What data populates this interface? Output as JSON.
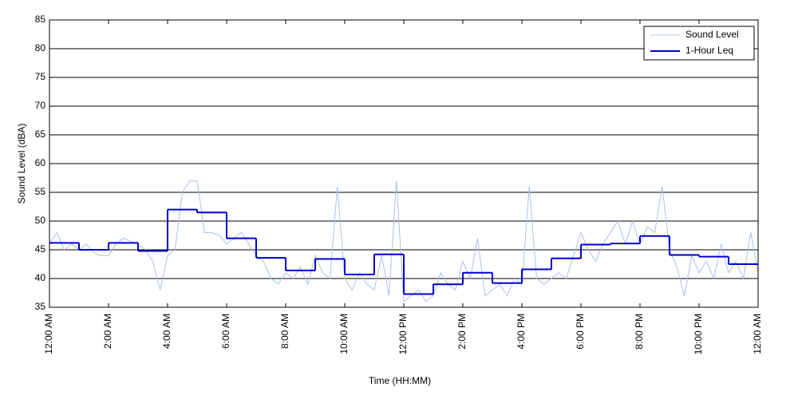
{
  "chart_data": {
    "type": "line",
    "xlabel": "Time (HH:MM)",
    "ylabel": "Sound Level (dBA)",
    "xlim": [
      0,
      24
    ],
    "ylim": [
      35,
      85
    ],
    "yticks": [
      35,
      40,
      45,
      50,
      55,
      60,
      65,
      70,
      75,
      80,
      85
    ],
    "xticks": [
      {
        "value": 0,
        "label": "12:00 AM"
      },
      {
        "value": 2,
        "label": "2:00 AM"
      },
      {
        "value": 4,
        "label": "4:00 AM"
      },
      {
        "value": 6,
        "label": "6:00 AM"
      },
      {
        "value": 8,
        "label": "8:00 AM"
      },
      {
        "value": 10,
        "label": "10:00 AM"
      },
      {
        "value": 12,
        "label": "12:00 PM"
      },
      {
        "value": 14,
        "label": "2:00 PM"
      },
      {
        "value": 16,
        "label": "4:00 PM"
      },
      {
        "value": 18,
        "label": "6:00 PM"
      },
      {
        "value": 20,
        "label": "8:00 PM"
      },
      {
        "value": 22,
        "label": "10:00 PM"
      },
      {
        "value": 24,
        "label": "12:00 AM"
      }
    ],
    "grid": true,
    "legend": "upper right",
    "series": [
      {
        "name": "Sound Level",
        "color": "#a9bff0",
        "x": [
          0,
          0.25,
          0.5,
          0.75,
          1,
          1.25,
          1.5,
          1.75,
          2,
          2.25,
          2.5,
          2.75,
          3,
          3.25,
          3.5,
          3.75,
          4,
          4.25,
          4.5,
          4.75,
          5,
          5.25,
          5.5,
          5.75,
          6,
          6.25,
          6.5,
          6.75,
          7,
          7.25,
          7.5,
          7.75,
          8,
          8.25,
          8.5,
          8.75,
          9,
          9.25,
          9.5,
          9.75,
          10,
          10.25,
          10.5,
          10.75,
          11,
          11.25,
          11.5,
          11.75,
          12,
          12.25,
          12.5,
          12.75,
          13,
          13.25,
          13.5,
          13.75,
          14,
          14.25,
          14.5,
          14.75,
          15,
          15.25,
          15.5,
          15.75,
          16,
          16.25,
          16.5,
          16.75,
          17,
          17.25,
          17.5,
          17.75,
          18,
          18.25,
          18.5,
          18.75,
          19,
          19.25,
          19.5,
          19.75,
          20,
          20.25,
          20.5,
          20.75,
          21,
          21.25,
          21.5,
          21.75,
          22,
          22.25,
          22.5,
          22.75,
          23,
          23.25,
          23.5,
          23.75,
          24
        ],
        "values": [
          46,
          48,
          45,
          46,
          45,
          46,
          44.5,
          44,
          44,
          46,
          47,
          46.5,
          46,
          45,
          43,
          38,
          44,
          45,
          55,
          57,
          57,
          48,
          48,
          47.5,
          46,
          47,
          48,
          46,
          44,
          43,
          40,
          39,
          41,
          40,
          42,
          39,
          44,
          41,
          40,
          56,
          40,
          38,
          41,
          39,
          38,
          44,
          37,
          57,
          36,
          37,
          38,
          36,
          37,
          41,
          39,
          38,
          43,
          40,
          47,
          37,
          38,
          39,
          37,
          40,
          39,
          56,
          40,
          39,
          40,
          41,
          40,
          44,
          48,
          45,
          43,
          46,
          48,
          50,
          46,
          50,
          46,
          49,
          48,
          56,
          45,
          42,
          37,
          44,
          41,
          43,
          40,
          46,
          41,
          43,
          40,
          48,
          41
        ]
      },
      {
        "name": "1-Hour Leq",
        "color": "#0000cc",
        "x": [
          0,
          1,
          2,
          3,
          4,
          5,
          6,
          7,
          8,
          9,
          10,
          11,
          12,
          13,
          14,
          15,
          16,
          17,
          18,
          19,
          20,
          21,
          22,
          23
        ],
        "values": [
          46.2,
          45.0,
          46.2,
          44.8,
          52.0,
          51.5,
          47.0,
          43.6,
          41.4,
          43.4,
          40.7,
          44.2,
          37.3,
          39.0,
          41.0,
          39.2,
          41.6,
          43.5,
          45.9,
          46.1,
          47.4,
          44.1,
          43.8,
          42.5
        ]
      }
    ]
  }
}
